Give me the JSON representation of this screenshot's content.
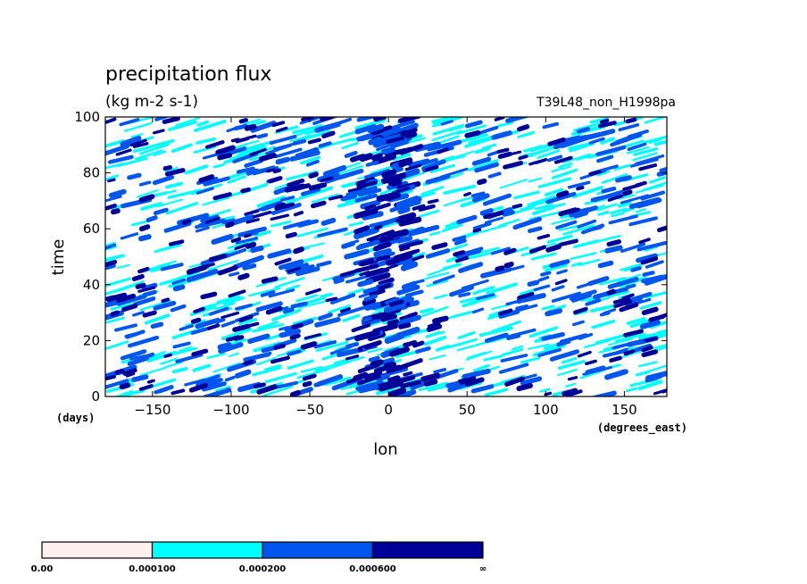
{
  "chart_data": {
    "type": "heatmap",
    "title": "precipitation flux",
    "subtitle": "(kg m-2 s-1)",
    "run_label": "T39L48_non_H1998pa",
    "xlabel": "lon",
    "xunit": "(degrees_east)",
    "ylabel": "time",
    "yunit": "(days)",
    "xlim": [
      -180,
      177
    ],
    "ylim": [
      0,
      100
    ],
    "xticks": [
      -150,
      -100,
      -50,
      0,
      50,
      100,
      150
    ],
    "yticks": [
      0,
      20,
      40,
      60,
      80,
      100
    ],
    "grid": false,
    "colorbar": {
      "levels": [
        "0.00",
        "0.000100",
        "0.000200",
        "0.000600",
        "∞"
      ],
      "colors": [
        "#fff0f0",
        "#00ffff",
        "#0055ee",
        "#000099"
      ]
    },
    "colors": {
      "light": "#00ffff",
      "medium": "#0055ee",
      "heavy": "#000099",
      "background": "#ffffff"
    }
  }
}
